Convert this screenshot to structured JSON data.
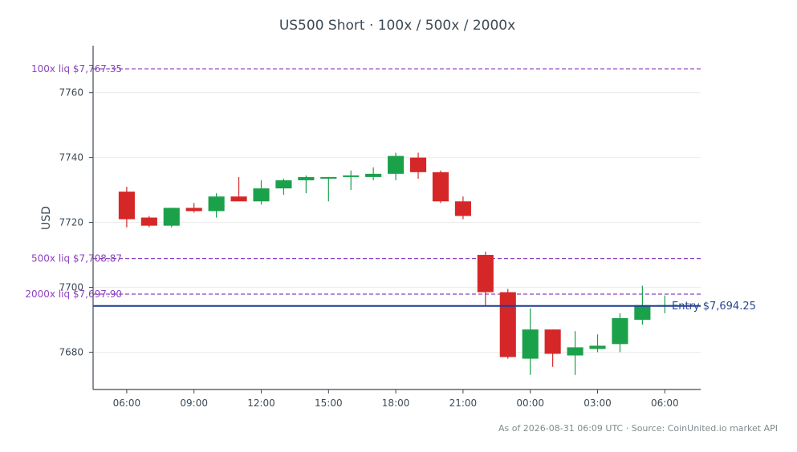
{
  "colors": {
    "up": "#1aa14a",
    "down": "#d62728",
    "liq": "#8e44c0",
    "entry": "#1f3a93",
    "axis": "#3d4a56",
    "grid": "#ececec"
  },
  "chart_data": {
    "type": "candlestick",
    "title": "US500 Short · 100x / 500x / 2000x",
    "ylabel": "USD",
    "xlabel": "",
    "ylim": [
      7668.5,
      7774.5
    ],
    "xlim_hours": [
      4.5,
      31.6
    ],
    "yticks": [
      "7680",
      "7700",
      "7720",
      "7740",
      "7760"
    ],
    "ytick_values": [
      7680,
      7700,
      7720,
      7740,
      7760
    ],
    "xticks": [
      "06:00",
      "09:00",
      "12:00",
      "15:00",
      "18:00",
      "21:00",
      "00:00",
      "03:00",
      "06:00"
    ],
    "xtick_hours": [
      6,
      9,
      12,
      15,
      18,
      21,
      24,
      27,
      30
    ],
    "grid": "horizontal",
    "candles": [
      {
        "t": 6,
        "o": 7729.5,
        "h": 7731.0,
        "l": 7718.5,
        "c": 7721.0
      },
      {
        "t": 7,
        "o": 7721.5,
        "h": 7722.0,
        "l": 7718.5,
        "c": 7719.0
      },
      {
        "t": 8,
        "o": 7719.0,
        "h": 7724.5,
        "l": 7718.5,
        "c": 7724.5
      },
      {
        "t": 9,
        "o": 7724.5,
        "h": 7726.0,
        "l": 7723.0,
        "c": 7723.5
      },
      {
        "t": 10,
        "o": 7723.5,
        "h": 7729.0,
        "l": 7721.5,
        "c": 7728.0
      },
      {
        "t": 11,
        "o": 7728.0,
        "h": 7734.0,
        "l": 7726.5,
        "c": 7726.5
      },
      {
        "t": 12,
        "o": 7726.5,
        "h": 7733.0,
        "l": 7725.5,
        "c": 7730.5
      },
      {
        "t": 13,
        "o": 7730.5,
        "h": 7733.5,
        "l": 7728.5,
        "c": 7733.0
      },
      {
        "t": 14,
        "o": 7733.0,
        "h": 7734.5,
        "l": 7729.0,
        "c": 7734.0
      },
      {
        "t": 15,
        "o": 7733.5,
        "h": 7734.0,
        "l": 7726.5,
        "c": 7734.0
      },
      {
        "t": 16,
        "o": 7734.0,
        "h": 7736.0,
        "l": 7730.0,
        "c": 7734.5
      },
      {
        "t": 17,
        "o": 7734.0,
        "h": 7737.0,
        "l": 7733.0,
        "c": 7735.0
      },
      {
        "t": 18,
        "o": 7735.0,
        "h": 7741.5,
        "l": 7733.0,
        "c": 7740.5
      },
      {
        "t": 19,
        "o": 7740.0,
        "h": 7741.5,
        "l": 7733.5,
        "c": 7735.5
      },
      {
        "t": 20,
        "o": 7735.5,
        "h": 7736.0,
        "l": 7726.0,
        "c": 7726.5
      },
      {
        "t": 21,
        "o": 7726.5,
        "h": 7728.0,
        "l": 7721.0,
        "c": 7722.0
      },
      {
        "t": 22,
        "o": 7710.0,
        "h": 7711.0,
        "l": 7694.5,
        "c": 7698.5
      },
      {
        "t": 23,
        "o": 7698.5,
        "h": 7699.5,
        "l": 7678.0,
        "c": 7678.5
      },
      {
        "t": 24,
        "o": 7678.0,
        "h": 7693.5,
        "l": 7673.0,
        "c": 7687.0
      },
      {
        "t": 25,
        "o": 7687.0,
        "h": 7687.0,
        "l": 7675.5,
        "c": 7679.5
      },
      {
        "t": 26,
        "o": 7679.0,
        "h": 7686.5,
        "l": 7673.0,
        "c": 7681.5
      },
      {
        "t": 27,
        "o": 7681.0,
        "h": 7685.5,
        "l": 7680.0,
        "c": 7682.0
      },
      {
        "t": 28,
        "o": 7682.5,
        "h": 7692.0,
        "l": 7680.0,
        "c": 7690.5
      },
      {
        "t": 29,
        "o": 7690.0,
        "h": 7700.5,
        "l": 7688.5,
        "c": 7694.5
      },
      {
        "t": 30,
        "o": 7694.5,
        "h": 7697.5,
        "l": 7692.0,
        "c": 7694.5
      }
    ],
    "liquidation_lines": [
      {
        "label": "100x liq $7,767.35",
        "value": 7767.35
      },
      {
        "label": "500x liq $7,708.87",
        "value": 7708.87
      },
      {
        "label": "2000x liq $7,697.90",
        "value": 7697.9
      }
    ],
    "entry_line": {
      "label": "Entry $7,694.25",
      "value": 7694.25
    },
    "footer": "As of 2026-08-31 06:09 UTC · Source: CoinUnited.io market API"
  }
}
